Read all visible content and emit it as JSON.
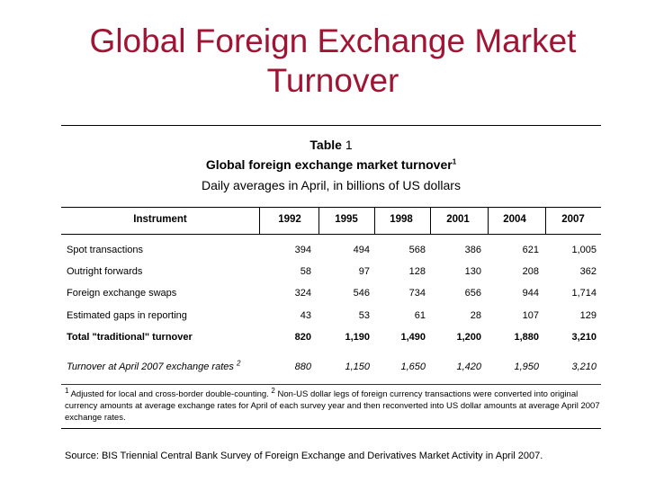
{
  "slide": {
    "title": "Global Foreign Exchange Market Turnover"
  },
  "table_caption": {
    "label": "Table",
    "number": "1",
    "title": "Global foreign exchange market turnover",
    "title_sup": "1",
    "subtitle": "Daily averages in April, in billions of US dollars"
  },
  "table": {
    "header": {
      "instrument": "Instrument",
      "years": [
        "1992",
        "1995",
        "1998",
        "2001",
        "2004",
        "2007"
      ]
    },
    "rows": [
      {
        "label": "Spot transactions",
        "values": [
          "394",
          "494",
          "568",
          "386",
          "621",
          "1,005"
        ]
      },
      {
        "label": "Outright forwards",
        "values": [
          "58",
          "97",
          "128",
          "130",
          "208",
          "362"
        ]
      },
      {
        "label": "Foreign exchange swaps",
        "values": [
          "324",
          "546",
          "734",
          "656",
          "944",
          "1,714"
        ]
      },
      {
        "label": "Estimated gaps in reporting",
        "values": [
          "43",
          "53",
          "61",
          "28",
          "107",
          "129"
        ]
      },
      {
        "label": "Total \"traditional\" turnover",
        "values": [
          "820",
          "1,190",
          "1,490",
          "1,200",
          "1,880",
          "3,210"
        ]
      },
      {
        "label": "Turnover at April 2007 exchange rates",
        "sup": "2",
        "values": [
          "880",
          "1,150",
          "1,650",
          "1,420",
          "1,950",
          "3,210"
        ]
      }
    ]
  },
  "footnote": {
    "n1": "1",
    "t1": " Adjusted for local and cross-border double-counting. ",
    "n2": "2",
    "t2": " Non-US dollar legs of foreign currency transactions were converted into original currency amounts at average exchange rates for April of each survey year and then reconverted into US dollar amounts at average April 2007 exchange rates."
  },
  "source": "Source: BIS Triennial Central Bank Survey of Foreign Exchange and Derivatives Market Activity in April 2007."
}
